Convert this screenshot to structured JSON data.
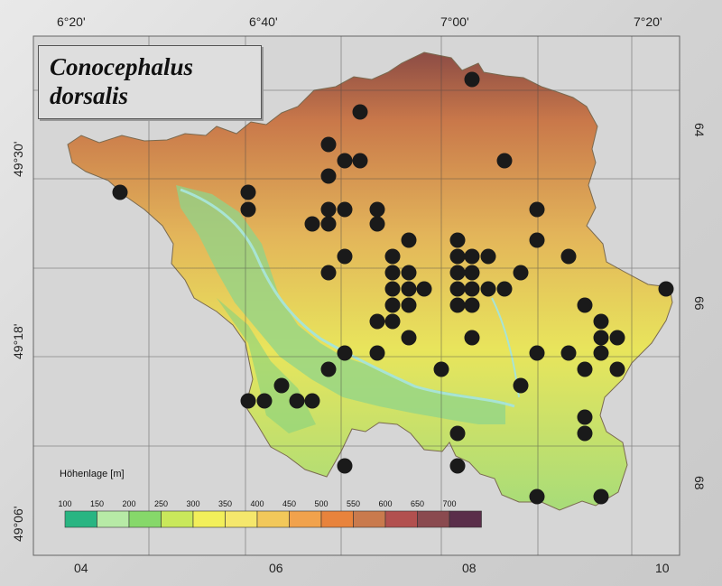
{
  "title": {
    "line1": "Conocephalus",
    "line2": "dorsalis"
  },
  "geo_labels": {
    "top": [
      "6°20'",
      "6°40'",
      "7°00'",
      "7°20'"
    ],
    "left": [
      "49°30'",
      "49°18'",
      "49°06'"
    ]
  },
  "utm_labels": {
    "bottom": [
      "04",
      "06",
      "08",
      "10"
    ],
    "right": [
      "64",
      "66",
      "68"
    ]
  },
  "legend": {
    "title": "Höhenlage [m]",
    "ticks": [
      "100",
      "150",
      "200",
      "250",
      "300",
      "350",
      "400",
      "450",
      "500",
      "550",
      "600",
      "650",
      "700"
    ],
    "colors": [
      "#29b582",
      "#b7eaa6",
      "#86d86a",
      "#c9e85b",
      "#f2ef5a",
      "#f5e76c",
      "#f2c85a",
      "#f1a24c",
      "#e8833c",
      "#c97a4d",
      "#b2504f",
      "#8a4a4f",
      "#5a2e4a"
    ]
  },
  "records_note": "",
  "colors": {
    "dot": "#1a1a1a",
    "lowland": "#8fd48a",
    "river": "#a8e4d4"
  }
}
